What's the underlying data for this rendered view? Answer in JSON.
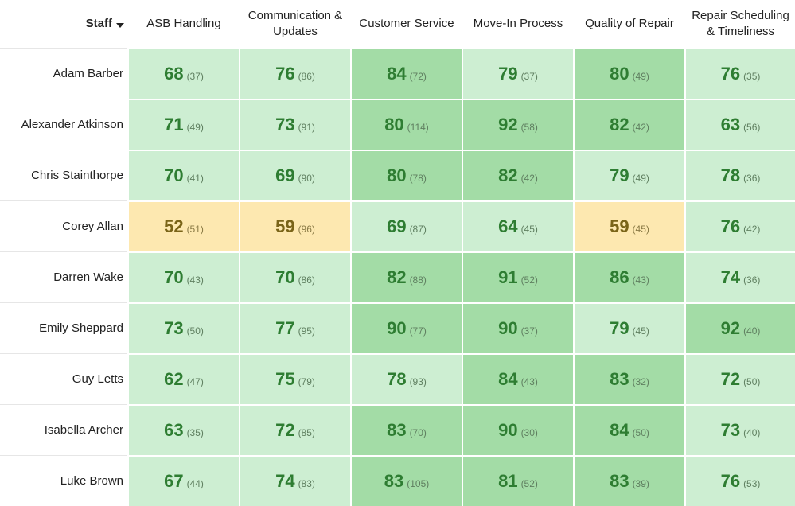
{
  "table": {
    "staff_header": "Staff",
    "columns": [
      "ASB Handling",
      "Communication & Updates",
      "Customer Service",
      "Move-In Process",
      "Quality of Repair",
      "Repair Scheduling & Timeliness"
    ],
    "rows": [
      {
        "name": "Adam Barber",
        "cells": [
          {
            "score": 68,
            "count": "(37)",
            "color": "#cdeed2"
          },
          {
            "score": 76,
            "count": "(86)",
            "color": "#cdeed2"
          },
          {
            "score": 84,
            "count": "(72)",
            "color": "#a3dca6"
          },
          {
            "score": 79,
            "count": "(37)",
            "color": "#cdeed2"
          },
          {
            "score": 80,
            "count": "(49)",
            "color": "#a3dca6"
          },
          {
            "score": 76,
            "count": "(35)",
            "color": "#cdeed2"
          }
        ]
      },
      {
        "name": "Alexander Atkinson",
        "cells": [
          {
            "score": 71,
            "count": "(49)",
            "color": "#cdeed2"
          },
          {
            "score": 73,
            "count": "(91)",
            "color": "#cdeed2"
          },
          {
            "score": 80,
            "count": "(114)",
            "color": "#a3dca6"
          },
          {
            "score": 92,
            "count": "(58)",
            "color": "#a3dca6"
          },
          {
            "score": 82,
            "count": "(42)",
            "color": "#a3dca6"
          },
          {
            "score": 63,
            "count": "(56)",
            "color": "#cdeed2"
          }
        ]
      },
      {
        "name": "Chris Stainthorpe",
        "cells": [
          {
            "score": 70,
            "count": "(41)",
            "color": "#cdeed2"
          },
          {
            "score": 69,
            "count": "(90)",
            "color": "#cdeed2"
          },
          {
            "score": 80,
            "count": "(78)",
            "color": "#a3dca6"
          },
          {
            "score": 82,
            "count": "(42)",
            "color": "#a3dca6"
          },
          {
            "score": 79,
            "count": "(49)",
            "color": "#cdeed2"
          },
          {
            "score": 78,
            "count": "(36)",
            "color": "#cdeed2"
          }
        ]
      },
      {
        "name": "Corey Allan",
        "cells": [
          {
            "score": 52,
            "count": "(51)",
            "color": "#fde8b0"
          },
          {
            "score": 59,
            "count": "(96)",
            "color": "#fde8b0"
          },
          {
            "score": 69,
            "count": "(87)",
            "color": "#cdeed2"
          },
          {
            "score": 64,
            "count": "(45)",
            "color": "#cdeed2"
          },
          {
            "score": 59,
            "count": "(45)",
            "color": "#fde8b0"
          },
          {
            "score": 76,
            "count": "(42)",
            "color": "#cdeed2"
          }
        ]
      },
      {
        "name": "Darren Wake",
        "cells": [
          {
            "score": 70,
            "count": "(43)",
            "color": "#cdeed2"
          },
          {
            "score": 70,
            "count": "(86)",
            "color": "#cdeed2"
          },
          {
            "score": 82,
            "count": "(88)",
            "color": "#a3dca6"
          },
          {
            "score": 91,
            "count": "(52)",
            "color": "#a3dca6"
          },
          {
            "score": 86,
            "count": "(43)",
            "color": "#a3dca6"
          },
          {
            "score": 74,
            "count": "(36)",
            "color": "#cdeed2"
          }
        ]
      },
      {
        "name": "Emily Sheppard",
        "cells": [
          {
            "score": 73,
            "count": "(50)",
            "color": "#cdeed2"
          },
          {
            "score": 77,
            "count": "(95)",
            "color": "#cdeed2"
          },
          {
            "score": 90,
            "count": "(77)",
            "color": "#a3dca6"
          },
          {
            "score": 90,
            "count": "(37)",
            "color": "#a3dca6"
          },
          {
            "score": 79,
            "count": "(45)",
            "color": "#cdeed2"
          },
          {
            "score": 92,
            "count": "(40)",
            "color": "#a3dca6"
          }
        ]
      },
      {
        "name": "Guy Letts",
        "cells": [
          {
            "score": 62,
            "count": "(47)",
            "color": "#cdeed2"
          },
          {
            "score": 75,
            "count": "(79)",
            "color": "#cdeed2"
          },
          {
            "score": 78,
            "count": "(93)",
            "color": "#cdeed2"
          },
          {
            "score": 84,
            "count": "(43)",
            "color": "#a3dca6"
          },
          {
            "score": 83,
            "count": "(32)",
            "color": "#a3dca6"
          },
          {
            "score": 72,
            "count": "(50)",
            "color": "#cdeed2"
          }
        ]
      },
      {
        "name": "Isabella Archer",
        "cells": [
          {
            "score": 63,
            "count": "(35)",
            "color": "#cdeed2"
          },
          {
            "score": 72,
            "count": "(85)",
            "color": "#cdeed2"
          },
          {
            "score": 83,
            "count": "(70)",
            "color": "#a3dca6"
          },
          {
            "score": 90,
            "count": "(30)",
            "color": "#a3dca6"
          },
          {
            "score": 84,
            "count": "(50)",
            "color": "#a3dca6"
          },
          {
            "score": 73,
            "count": "(40)",
            "color": "#cdeed2"
          }
        ]
      },
      {
        "name": "Luke Brown",
        "cells": [
          {
            "score": 67,
            "count": "(44)",
            "color": "#cdeed2"
          },
          {
            "score": 74,
            "count": "(83)",
            "color": "#cdeed2"
          },
          {
            "score": 83,
            "count": "(105)",
            "color": "#a3dca6"
          },
          {
            "score": 81,
            "count": "(52)",
            "color": "#a3dca6"
          },
          {
            "score": 83,
            "count": "(39)",
            "color": "#a3dca6"
          },
          {
            "score": 76,
            "count": "(53)",
            "color": "#cdeed2"
          }
        ]
      }
    ]
  }
}
